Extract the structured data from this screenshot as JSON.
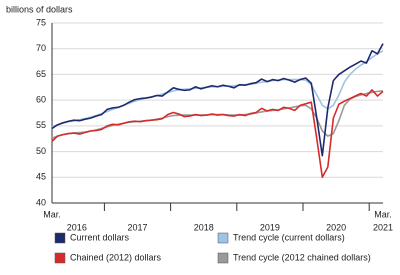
{
  "chart_data": {
    "type": "line",
    "y_axis_label": "billions of dollars",
    "categories": [
      "Mar.",
      null,
      null,
      null,
      null,
      null,
      null,
      null,
      null,
      null,
      null,
      null,
      null,
      null,
      null,
      null,
      null,
      null,
      null,
      null,
      null,
      null,
      null,
      null,
      null,
      null,
      null,
      null,
      null,
      null,
      null,
      null,
      null,
      null,
      null,
      null,
      null,
      null,
      null,
      null,
      null,
      null,
      null,
      null,
      null,
      null,
      null,
      null,
      null,
      null,
      null,
      null,
      null,
      null,
      null,
      null,
      null,
      null,
      null,
      null,
      "Mar."
    ],
    "year_labels": [
      "2016",
      "2017",
      "2018",
      "2019",
      "2020",
      "2021"
    ],
    "ylim": [
      40,
      75
    ],
    "yticks": [
      40,
      45,
      50,
      55,
      60,
      65,
      70,
      75
    ],
    "grid": true,
    "series": [
      {
        "name": "Trend cycle (current dollars)",
        "color": "#9dc3e6",
        "values": [
          54.8,
          55.2,
          55.5,
          55.8,
          56.0,
          56.2,
          56.4,
          56.7,
          57.0,
          57.4,
          57.8,
          58.2,
          58.6,
          59.0,
          59.4,
          59.8,
          60.1,
          60.4,
          60.6,
          60.9,
          61.2,
          61.5,
          61.8,
          62.0,
          62.1,
          62.2,
          62.3,
          62.4,
          62.5,
          62.6,
          62.6,
          62.7,
          62.7,
          62.8,
          62.9,
          63.0,
          63.1,
          63.3,
          63.5,
          63.6,
          63.8,
          63.9,
          64.0,
          64.0,
          64.0,
          64.0,
          63.9,
          63.0,
          61.0,
          59.0,
          58.3,
          59.0,
          61.0,
          63.5,
          65.0,
          66.0,
          66.8,
          67.5,
          68.3,
          69.0,
          69.6
        ]
      },
      {
        "name": "Trend cycle (2012 chained dollars)",
        "color": "#9a9a9a",
        "values": [
          52.6,
          53.0,
          53.3,
          53.5,
          53.6,
          53.7,
          53.8,
          54.0,
          54.2,
          54.5,
          54.8,
          55.1,
          55.3,
          55.5,
          55.7,
          55.8,
          55.9,
          56.0,
          56.1,
          56.3,
          56.5,
          56.8,
          57.0,
          57.1,
          57.1,
          57.1,
          57.1,
          57.1,
          57.1,
          57.2,
          57.2,
          57.2,
          57.1,
          57.1,
          57.1,
          57.2,
          57.3,
          57.5,
          57.7,
          57.9,
          58.0,
          58.1,
          58.3,
          58.5,
          58.7,
          58.9,
          59.0,
          58.3,
          56.5,
          54.0,
          53.0,
          53.5,
          56.0,
          59.0,
          60.2,
          60.7,
          61.0,
          61.3,
          61.5,
          61.7,
          61.8
        ]
      },
      {
        "name": "Current dollars",
        "color": "#1f2a6b",
        "values": [
          54.5,
          55.2,
          55.6,
          55.9,
          56.1,
          56.0,
          56.3,
          56.5,
          56.9,
          57.2,
          58.2,
          58.5,
          58.6,
          59.0,
          59.6,
          60.1,
          60.3,
          60.4,
          60.6,
          60.9,
          60.8,
          61.6,
          62.4,
          62.1,
          61.9,
          62.0,
          62.6,
          62.2,
          62.5,
          62.8,
          62.6,
          62.9,
          62.7,
          62.4,
          63.0,
          62.9,
          63.2,
          63.4,
          64.1,
          63.6,
          64.0,
          63.8,
          64.2,
          63.9,
          63.5,
          64.0,
          64.3,
          63.3,
          56.5,
          49.2,
          58.5,
          63.8,
          65.0,
          65.7,
          66.4,
          67.0,
          67.6,
          67.2,
          69.6,
          69.0,
          71.0
        ]
      },
      {
        "name": "Chained (2012) dollars",
        "color": "#d62b2b",
        "values": [
          52.0,
          53.0,
          53.3,
          53.5,
          53.6,
          53.4,
          53.7,
          54.0,
          54.1,
          54.3,
          55.0,
          55.3,
          55.2,
          55.5,
          55.8,
          55.9,
          55.8,
          56.0,
          56.1,
          56.2,
          56.4,
          57.2,
          57.6,
          57.3,
          56.8,
          56.9,
          57.2,
          57.0,
          57.1,
          57.3,
          57.1,
          57.2,
          57.0,
          56.9,
          57.2,
          57.0,
          57.4,
          57.6,
          58.4,
          57.9,
          58.2,
          58.0,
          58.6,
          58.4,
          58.0,
          59.0,
          59.3,
          59.6,
          52.5,
          45.0,
          47.0,
          56.5,
          59.2,
          59.8,
          60.3,
          60.8,
          61.3,
          60.8,
          62.0,
          60.8,
          61.7
        ]
      }
    ],
    "legend_order": [
      2,
      0,
      3,
      1
    ]
  }
}
